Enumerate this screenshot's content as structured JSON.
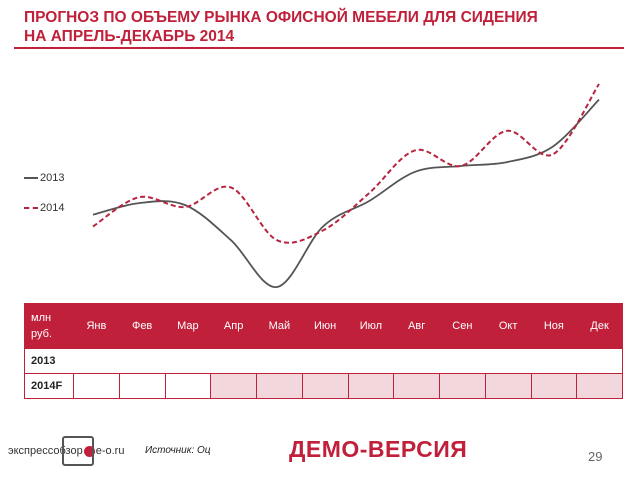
{
  "title": {
    "line1": "ПРОГНОЗ ПО ОБЪЕМУ РЫНКА ОФИСНОЙ МЕБЕЛИ ДЛЯ СИДЕНИЯ",
    "line2": "НА АПРЕЛЬ-ДЕКАБРЬ 2014"
  },
  "chart_data": {
    "type": "line",
    "categories": [
      "Янв",
      "Фев",
      "Мар",
      "Апр",
      "Май",
      "Июн",
      "Июл",
      "Авг",
      "Сен",
      "Окт",
      "Ноя",
      "Дек"
    ],
    "series": [
      {
        "name": "2013",
        "style": "solid",
        "color": "#555555",
        "values": [
          45,
          51,
          50,
          32,
          8,
          39,
          52,
          67,
          70,
          72,
          80,
          104
        ]
      },
      {
        "name": "2014",
        "style": "dashed",
        "color": "#b8243f",
        "values": [
          39,
          54,
          49,
          59,
          32,
          37,
          56,
          78,
          70,
          88,
          76,
          112
        ]
      }
    ],
    "yaxis_visible": false,
    "grid": false,
    "legend": "left"
  },
  "table": {
    "unit_header": "млн руб.",
    "months": [
      "Янв",
      "Фев",
      "Мар",
      "Апр",
      "Май",
      "Июн",
      "Июл",
      "Авг",
      "Сен",
      "Окт",
      "Ноя",
      "Дек"
    ],
    "rows": [
      {
        "label": "2013",
        "values": [
          "",
          "",
          "",
          "",
          "",
          "",
          "",
          "",
          "",
          "",
          "",
          ""
        ]
      },
      {
        "label": "2014F",
        "values": [
          "",
          "",
          "",
          "",
          "",
          "",
          "",
          "",
          "",
          "",
          "",
          ""
        ]
      }
    ]
  },
  "footer": {
    "logo_left": "экспрессобзор",
    "logo_right": "e-o.ru",
    "source": "Источник: Оц",
    "demo": "ДЕМО-ВЕРСИЯ",
    "page": "29"
  },
  "colors": {
    "accent": "#c0203a",
    "highlight": "#f2d7dc",
    "line2013": "#555555"
  }
}
